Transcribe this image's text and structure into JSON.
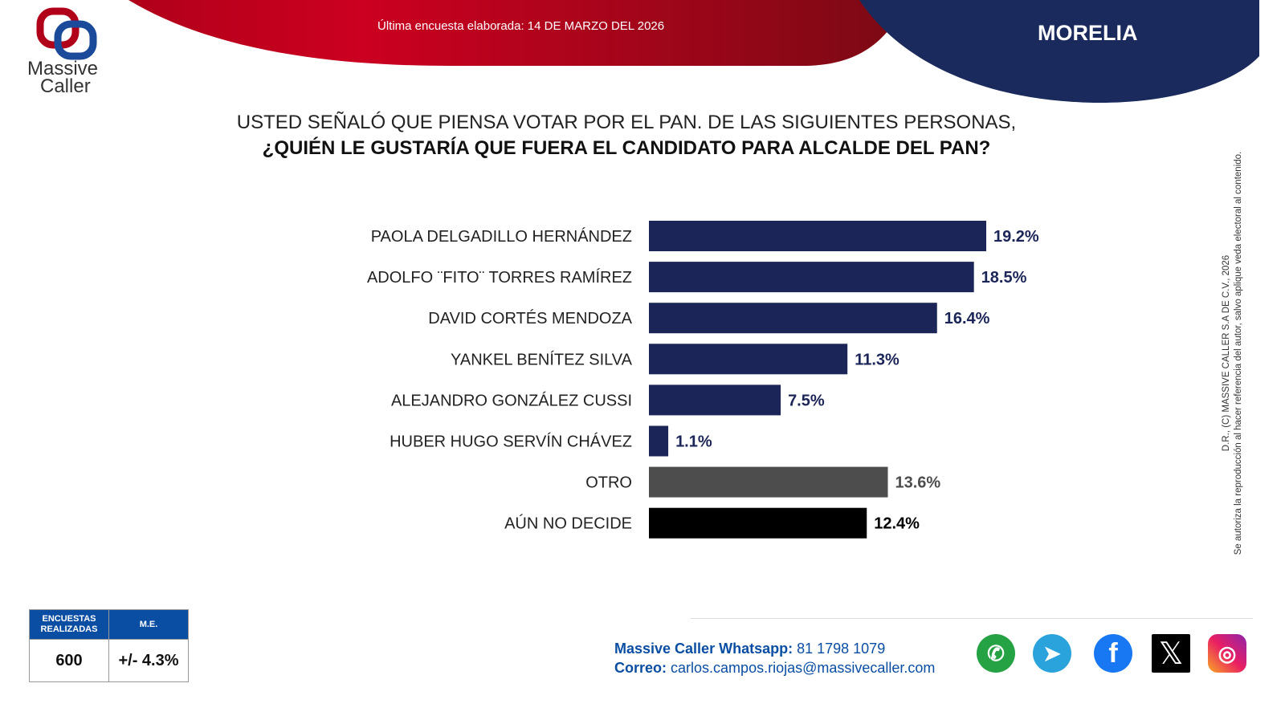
{
  "header": {
    "survey_date": "Última encuesta elaborada: 14 DE MARZO DEL 2026",
    "city": "MORELIA"
  },
  "logo": {
    "line1": "Massive",
    "line2": "Caller"
  },
  "question": {
    "line1": "USTED SEÑALÓ QUE PIENSA VOTAR POR EL PAN. DE LAS SIGUIENTES PERSONAS,",
    "line2": "¿QUIÉN LE GUSTARÍA QUE FUERA EL CANDIDATO PARA ALCALDE DEL PAN?"
  },
  "chart_data": {
    "type": "bar",
    "orientation": "horizontal",
    "categories": [
      "PAOLA DELGADILLO HERNÁNDEZ",
      "ADOLFO ¨FITO¨ TORRES RAMÍREZ",
      "DAVID CORTÉS MENDOZA",
      "YANKEL BENÍTEZ SILVA",
      "ALEJANDRO GONZÁLEZ CUSSI",
      "HUBER HUGO SERVÍN CHÁVEZ",
      "OTRO",
      "AÚN NO DECIDE"
    ],
    "values": [
      19.2,
      18.5,
      16.4,
      11.3,
      7.5,
      1.1,
      13.6,
      12.4
    ],
    "value_labels": [
      "19.2%",
      "18.5%",
      "16.4%",
      "11.3%",
      "7.5%",
      "1.1%",
      "13.6%",
      "12.4%"
    ],
    "colors": [
      "#1b2557",
      "#1b2557",
      "#1b2557",
      "#1b2557",
      "#1b2557",
      "#1b2557",
      "#4d4d4d",
      "#000000"
    ],
    "label_colors": [
      "#1b2557",
      "#1b2557",
      "#1b2557",
      "#1b2557",
      "#1b2557",
      "#1b2557",
      "#4d4d4d",
      "#000000"
    ],
    "grid": false
  },
  "legal": {
    "line1": "D.R., (C) MASSIVE CALLER S.A DE C.V., 2026",
    "line2": "Se autoriza la reproducción al hacer referencia del autor, salvo aplique veda electoral al contenido."
  },
  "stats": {
    "surveys_label": "ENCUESTAS REALIZADAS",
    "surveys_value": "600",
    "me_label": "M.E.",
    "me_value": "+/- 4.3%"
  },
  "contact": {
    "whatsapp_label": "Massive Caller Whatsapp:",
    "whatsapp_value": "81 1798 1079",
    "email_label": "Correo:",
    "email_value": "carlos.campos.riojas@massivecaller.com"
  },
  "social": [
    "whatsapp-icon",
    "telegram-icon",
    "facebook-icon",
    "x-icon",
    "instagram-icon"
  ],
  "colors": {
    "red": "#c0001a",
    "navy": "#1b2a5c",
    "blue": "#0a4ea3"
  }
}
